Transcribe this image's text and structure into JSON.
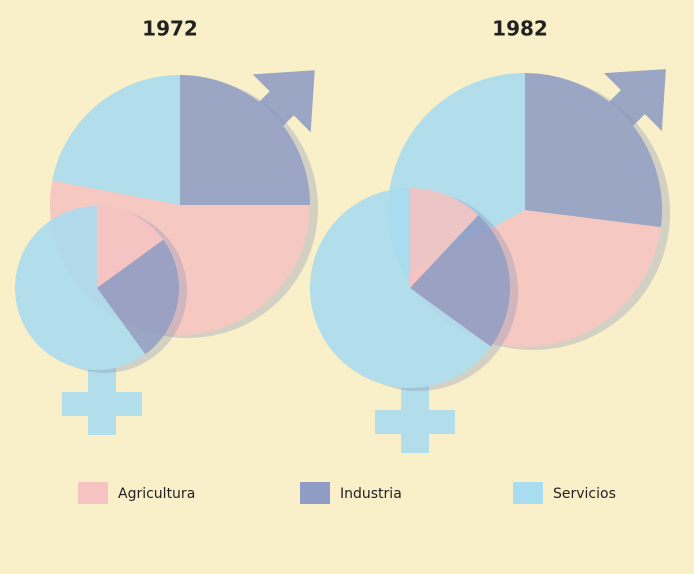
{
  "chart_data": [
    {
      "type": "pie",
      "title": "1972",
      "categories": [
        "Agricultura",
        "Industria",
        "Servicios"
      ],
      "colors": [
        "#f5c3c2",
        "#8f9cc4",
        "#a8dcef"
      ],
      "series": [
        {
          "values": [
            53,
            25,
            22
          ]
        },
        {
          "values": [
            15,
            25,
            60
          ]
        }
      ]
    },
    {
      "type": "pie",
      "title": "1982",
      "categories": [
        "Agricultura",
        "Industria",
        "Servicios"
      ],
      "colors": [
        "#f5c3c2",
        "#8f9cc4",
        "#a8dcef"
      ],
      "series": [
        {
          "values": [
            40,
            27,
            33
          ]
        },
        {
          "values": [
            12,
            23,
            65
          ]
        }
      ]
    }
  ]
}
